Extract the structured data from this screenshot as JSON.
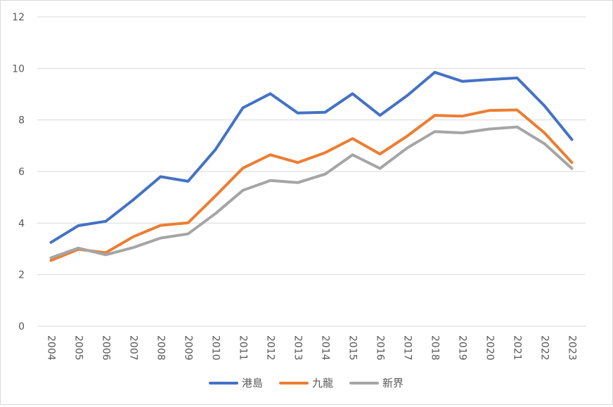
{
  "chart_data": {
    "type": "line",
    "title": "",
    "xlabel": "",
    "ylabel": "",
    "categories": [
      "2004",
      "2005",
      "2006",
      "2007",
      "2008",
      "2009",
      "2010",
      "2011",
      "2012",
      "2013",
      "2014",
      "2015",
      "2016",
      "2017",
      "2018",
      "2019",
      "2020",
      "2021",
      "2022",
      "2023"
    ],
    "ylim": [
      0,
      12
    ],
    "yticks": [
      "0",
      "2",
      "4",
      "6",
      "8",
      "10",
      "12"
    ],
    "grid": true,
    "legend_position": "bottom",
    "series": [
      {
        "name": "港島",
        "color": "#4472C4",
        "values": [
          3.25,
          3.9,
          4.07,
          4.9,
          5.8,
          5.62,
          6.85,
          8.47,
          9.02,
          8.27,
          8.3,
          9.02,
          8.18,
          8.95,
          9.85,
          9.5,
          9.57,
          9.63,
          8.55,
          7.24
        ]
      },
      {
        "name": "九龍",
        "color": "#ED7D31",
        "values": [
          2.55,
          2.98,
          2.85,
          3.47,
          3.91,
          4.01,
          5.05,
          6.13,
          6.65,
          6.35,
          6.73,
          7.28,
          6.68,
          7.38,
          8.18,
          8.15,
          8.37,
          8.39,
          7.5,
          6.35
        ]
      },
      {
        "name": "新界",
        "color": "#A5A5A5",
        "values": [
          2.65,
          3.03,
          2.77,
          3.05,
          3.42,
          3.58,
          4.37,
          5.27,
          5.65,
          5.57,
          5.9,
          6.65,
          6.12,
          6.92,
          7.55,
          7.5,
          7.65,
          7.73,
          7.08,
          6.12
        ]
      }
    ]
  }
}
